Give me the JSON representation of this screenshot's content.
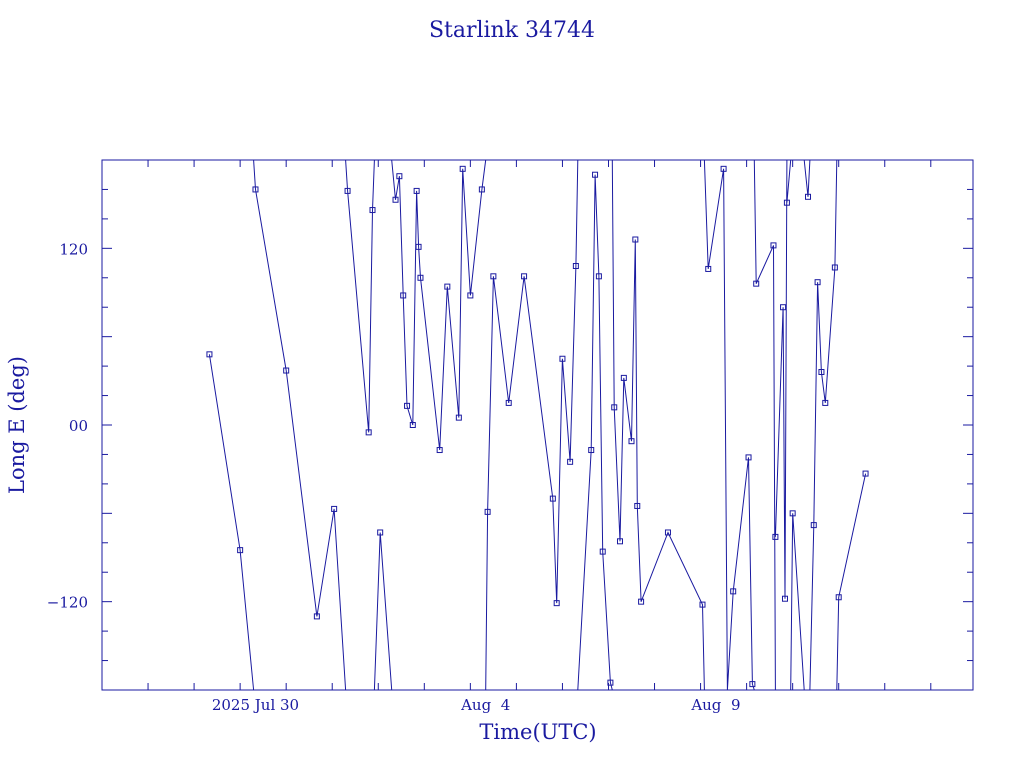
{
  "colors": {
    "line": "#1a1aa0",
    "axes": "#1a1aa0",
    "background": "#ffffff"
  },
  "chart_data": {
    "type": "line",
    "title": "Starlink 34744",
    "xlabel": "Time(UTC)",
    "ylabel": "Long E (deg)",
    "x_unit": "days",
    "xlim": [
      "2025-07-26T16:00",
      "2025-08-14T14:00"
    ],
    "ylim": [
      -180,
      180
    ],
    "y_ticks": [
      -120,
      0,
      120
    ],
    "y_tick_labels": [
      "−120",
      "00",
      "120"
    ],
    "x_tick_labels": [
      {
        "x": "2025-07-30",
        "label": "2025 Jul 30"
      },
      {
        "x": "2025-08-04",
        "label": "Aug  4"
      },
      {
        "x": "2025-08-09",
        "label": "Aug  9"
      }
    ],
    "grid": false,
    "legend": "none",
    "markers": "open squares",
    "series": [
      {
        "points": [
          {
            "x": "2025-07-29T00:00",
            "y": 48
          },
          {
            "x": "2025-07-29T16:00",
            "y": -85
          },
          {
            "x": "2025-07-29T23:00",
            "y": -180,
            "break": true
          },
          {
            "x": "2025-07-29T23:00",
            "y": 180
          },
          {
            "x": "2025-07-30T00:00",
            "y": 160
          },
          {
            "x": "2025-07-30T16:00",
            "y": 37
          },
          {
            "x": "2025-07-31T08:00",
            "y": -130
          },
          {
            "x": "2025-07-31T17:00",
            "y": -57
          },
          {
            "x": "2025-07-31T23:00",
            "y": -180,
            "break": true
          },
          {
            "x": "2025-07-31T23:00",
            "y": 180
          },
          {
            "x": "2025-08-01T00:00",
            "y": 159
          },
          {
            "x": "2025-08-01T11:00",
            "y": -5
          },
          {
            "x": "2025-08-01T13:00",
            "y": 146
          },
          {
            "x": "2025-08-01T14:00",
            "y": 180,
            "break": true
          },
          {
            "x": "2025-08-01T14:00",
            "y": -180
          },
          {
            "x": "2025-08-01T17:00",
            "y": -73
          },
          {
            "x": "2025-08-01T23:00",
            "y": -180,
            "break": true
          },
          {
            "x": "2025-08-01T23:00",
            "y": 180
          },
          {
            "x": "2025-08-02T01:00",
            "y": 153
          },
          {
            "x": "2025-08-02T03:00",
            "y": 169
          },
          {
            "x": "2025-08-02T05:00",
            "y": 88
          },
          {
            "x": "2025-08-02T07:00",
            "y": 13
          },
          {
            "x": "2025-08-02T10:00",
            "y": 0
          },
          {
            "x": "2025-08-02T12:00",
            "y": 159
          },
          {
            "x": "2025-08-02T13:00",
            "y": 121
          },
          {
            "x": "2025-08-02T14:00",
            "y": 100
          },
          {
            "x": "2025-08-03T00:00",
            "y": -17
          },
          {
            "x": "2025-08-03T04:00",
            "y": 94
          },
          {
            "x": "2025-08-03T10:00",
            "y": 5
          },
          {
            "x": "2025-08-03T12:00",
            "y": 174
          },
          {
            "x": "2025-08-03T16:00",
            "y": 88
          },
          {
            "x": "2025-08-03T22:00",
            "y": 160
          },
          {
            "x": "2025-08-04T00:00",
            "y": 180,
            "break": true
          },
          {
            "x": "2025-08-04T00:00",
            "y": -180
          },
          {
            "x": "2025-08-04T01:00",
            "y": -59
          },
          {
            "x": "2025-08-04T04:00",
            "y": 101
          },
          {
            "x": "2025-08-04T12:00",
            "y": 15
          },
          {
            "x": "2025-08-04T20:00",
            "y": 101
          },
          {
            "x": "2025-08-05T11:00",
            "y": -50
          },
          {
            "x": "2025-08-05T13:00",
            "y": -121
          },
          {
            "x": "2025-08-05T16:00",
            "y": 45
          },
          {
            "x": "2025-08-05T20:00",
            "y": -25
          },
          {
            "x": "2025-08-05T23:00",
            "y": 108
          },
          {
            "x": "2025-08-06T00:00",
            "y": 180,
            "break": true
          },
          {
            "x": "2025-08-06T00:00",
            "y": -180
          },
          {
            "x": "2025-08-06T07:00",
            "y": -17
          },
          {
            "x": "2025-08-06T09:00",
            "y": 170
          },
          {
            "x": "2025-08-06T11:00",
            "y": 101
          },
          {
            "x": "2025-08-06T13:00",
            "y": -86
          },
          {
            "x": "2025-08-06T17:00",
            "y": -175
          },
          {
            "x": "2025-08-06T18:00",
            "y": -180,
            "break": true
          },
          {
            "x": "2025-08-06T18:00",
            "y": 180
          },
          {
            "x": "2025-08-06T19:00",
            "y": 12
          },
          {
            "x": "2025-08-06T22:00",
            "y": -79
          },
          {
            "x": "2025-08-07T00:00",
            "y": 32
          },
          {
            "x": "2025-08-07T04:00",
            "y": -11
          },
          {
            "x": "2025-08-07T06:00",
            "y": 126
          },
          {
            "x": "2025-08-07T07:00",
            "y": -55
          },
          {
            "x": "2025-08-07T09:00",
            "y": -120
          },
          {
            "x": "2025-08-07T23:00",
            "y": -73
          },
          {
            "x": "2025-08-08T17:00",
            "y": -122
          },
          {
            "x": "2025-08-08T18:00",
            "y": -180,
            "break": true
          },
          {
            "x": "2025-08-08T18:00",
            "y": 180
          },
          {
            "x": "2025-08-08T20:00",
            "y": 106
          },
          {
            "x": "2025-08-09T04:00",
            "y": 174
          },
          {
            "x": "2025-08-09T06:00",
            "y": -180,
            "break": true
          },
          {
            "x": "2025-08-09T06:00",
            "y": -183
          },
          {
            "x": "2025-08-09T09:00",
            "y": -113
          },
          {
            "x": "2025-08-09T17:00",
            "y": -22
          },
          {
            "x": "2025-08-09T19:00",
            "y": -176
          },
          {
            "x": "2025-08-09T20:00",
            "y": -180,
            "break": true
          },
          {
            "x": "2025-08-09T20:00",
            "y": 180
          },
          {
            "x": "2025-08-09T21:00",
            "y": 96
          },
          {
            "x": "2025-08-10T06:00",
            "y": 122
          },
          {
            "x": "2025-08-10T07:00",
            "y": -180,
            "break": true
          },
          {
            "x": "2025-08-10T07:00",
            "y": -76
          },
          {
            "x": "2025-08-10T11:00",
            "y": 80
          },
          {
            "x": "2025-08-10T12:00",
            "y": -118
          },
          {
            "x": "2025-08-10T13:00",
            "y": 180,
            "break": true
          },
          {
            "x": "2025-08-10T13:00",
            "y": 151
          },
          {
            "x": "2025-08-10T15:00",
            "y": 180,
            "break": true
          },
          {
            "x": "2025-08-10T15:00",
            "y": -180
          },
          {
            "x": "2025-08-10T16:00",
            "y": -60
          },
          {
            "x": "2025-08-10T22:00",
            "y": -180,
            "break": true
          },
          {
            "x": "2025-08-10T22:00",
            "y": 180
          },
          {
            "x": "2025-08-11T00:00",
            "y": 155
          },
          {
            "x": "2025-08-11T01:00",
            "y": 180,
            "break": true
          },
          {
            "x": "2025-08-11T01:00",
            "y": -180
          },
          {
            "x": "2025-08-11T03:00",
            "y": -68
          },
          {
            "x": "2025-08-11T05:00",
            "y": 97
          },
          {
            "x": "2025-08-11T07:00",
            "y": 36
          },
          {
            "x": "2025-08-11T09:00",
            "y": 15
          },
          {
            "x": "2025-08-11T14:00",
            "y": 107
          },
          {
            "x": "2025-08-11T15:00",
            "y": 180,
            "break": true
          },
          {
            "x": "2025-08-11T15:00",
            "y": -180
          },
          {
            "x": "2025-08-11T16:00",
            "y": -117
          },
          {
            "x": "2025-08-12T06:00",
            "y": -33
          }
        ]
      }
    ]
  }
}
